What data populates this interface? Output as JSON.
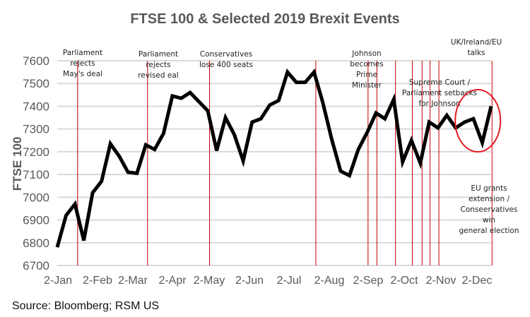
{
  "chart_data": {
    "type": "line",
    "title": "FTSE 100 & Selected 2019 Brexit Events",
    "xlabel": "",
    "ylabel": "FTSE 100",
    "ylim": [
      6700,
      7600
    ],
    "yticks": [
      6700,
      6800,
      6900,
      7000,
      7100,
      7200,
      7300,
      7400,
      7500,
      7600
    ],
    "grid": true,
    "x_tick_labels": [
      "2-Jan",
      "2-Feb",
      "2-Mar",
      "2-Apr",
      "2-May",
      "2-Jun",
      "2-Jul",
      "2-Aug",
      "2-Sep",
      "2-Oct",
      "2-Nov",
      "2-Dec"
    ],
    "x_range_weeks": [
      0,
      49
    ],
    "series": [
      {
        "name": "FTSE 100",
        "color": "#000000",
        "x_weeks": [
          0,
          1,
          2,
          3,
          4,
          5,
          6,
          7,
          8,
          9,
          10,
          11,
          12,
          13,
          14,
          15,
          16,
          17,
          18,
          19,
          20,
          21,
          22,
          23,
          24,
          25,
          26,
          27,
          28,
          29,
          30,
          31,
          32,
          33,
          34,
          35,
          36,
          37,
          38,
          39,
          40,
          41,
          42,
          43,
          44,
          45,
          46,
          47,
          48,
          49
        ],
        "values": [
          6780,
          6920,
          6970,
          6810,
          7020,
          7070,
          7235,
          7180,
          7110,
          7105,
          7230,
          7210,
          7280,
          7445,
          7435,
          7460,
          7420,
          7380,
          7205,
          7350,
          7275,
          7160,
          7330,
          7345,
          7405,
          7425,
          7550,
          7505,
          7505,
          7550,
          7415,
          7255,
          7115,
          7095,
          7210,
          7285,
          7370,
          7345,
          7430,
          7155,
          7250,
          7150,
          7330,
          7305,
          7360,
          7305,
          7330,
          7345,
          7240,
          7400
        ]
      }
    ],
    "event_lines": {
      "color": "#c00000",
      "x_weeks": [
        2.3,
        10.2,
        17.2,
        29.2,
        35.1,
        36.1,
        38.2,
        40.1,
        41.2,
        42.1,
        43.1,
        49.1
      ]
    },
    "annotations": [
      {
        "lines": [
          "Parliament",
          "rejects",
          "May's deal"
        ]
      },
      {
        "lines": [
          "Parliament",
          "rejects",
          "revised eal"
        ]
      },
      {
        "lines": [
          "Conservatives",
          "lose 400 seats"
        ]
      },
      {
        "lines": [
          "Johnson",
          "becomes",
          "Prime",
          "Minister"
        ]
      },
      {
        "lines": [
          "Supreme Court /",
          "Parliament setbacks",
          "for Johnson"
        ]
      },
      {
        "lines": [
          "UK/Ireland/EU",
          "talks"
        ]
      },
      {
        "lines": [
          "EU grants",
          "extension /",
          "Conseervatives",
          "win",
          "general election"
        ]
      }
    ],
    "highlight_circle": {
      "color": "#e31b23",
      "center_week": 47.5,
      "center_value": 7305
    }
  },
  "source": "Source: Bloomberg; RSM US"
}
